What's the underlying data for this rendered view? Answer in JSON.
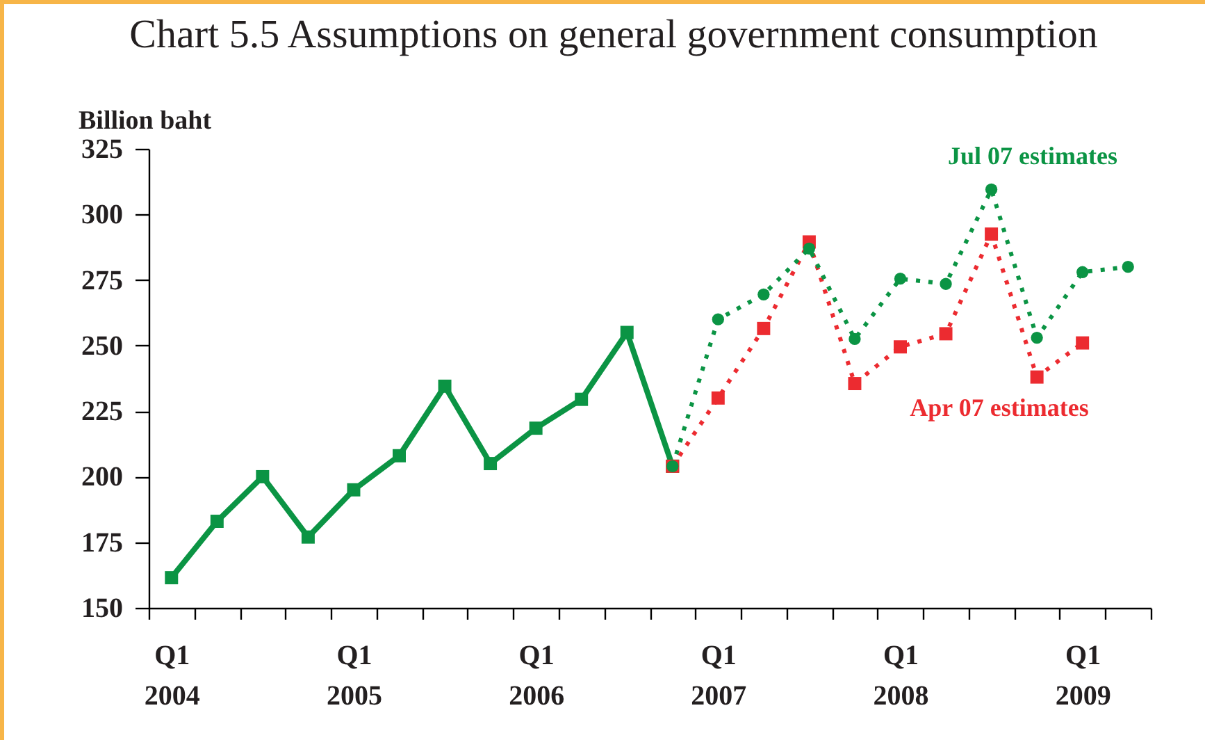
{
  "chart_data": {
    "type": "line",
    "title": "Chart 5.5 Assumptions on general government consumption",
    "ylabel": "Billion baht",
    "categories": [
      "Q1 2004",
      null,
      null,
      null,
      "Q1 2005",
      null,
      null,
      null,
      "Q1 2006",
      null,
      null,
      null,
      "Q1 2007",
      null,
      null,
      null,
      "Q1 2008",
      null,
      null,
      null,
      "Q1 2009",
      null
    ],
    "ylim": [
      150,
      325
    ],
    "yticks": [
      150,
      175,
      200,
      225,
      250,
      275,
      300,
      325
    ],
    "series": [
      {
        "color": "#0b9444",
        "line_style": "solid",
        "marker": "square",
        "values": [
          161.5,
          183,
          200,
          177,
          195,
          208,
          234.5,
          205,
          218.5,
          229.5,
          255,
          204,
          null,
          null,
          null,
          null,
          null,
          null,
          null,
          null,
          null,
          null
        ]
      },
      {
        "name": "Apr 07 estimates",
        "color": "#ec2b30",
        "line_style": "dotted",
        "marker": "square",
        "values": [
          null,
          null,
          null,
          null,
          null,
          null,
          null,
          null,
          null,
          null,
          null,
          204,
          230,
          256.5,
          289.5,
          235.5,
          249.5,
          254.5,
          292.5,
          238,
          251,
          null
        ]
      },
      {
        "name": "Jul 07 estimates",
        "color": "#0b9444",
        "line_style": "dotted",
        "marker": "circle",
        "values": [
          null,
          null,
          null,
          null,
          null,
          null,
          null,
          null,
          null,
          null,
          null,
          204,
          260,
          269.5,
          287,
          252.5,
          275.5,
          273.5,
          309.5,
          253,
          278,
          280
        ]
      }
    ]
  }
}
